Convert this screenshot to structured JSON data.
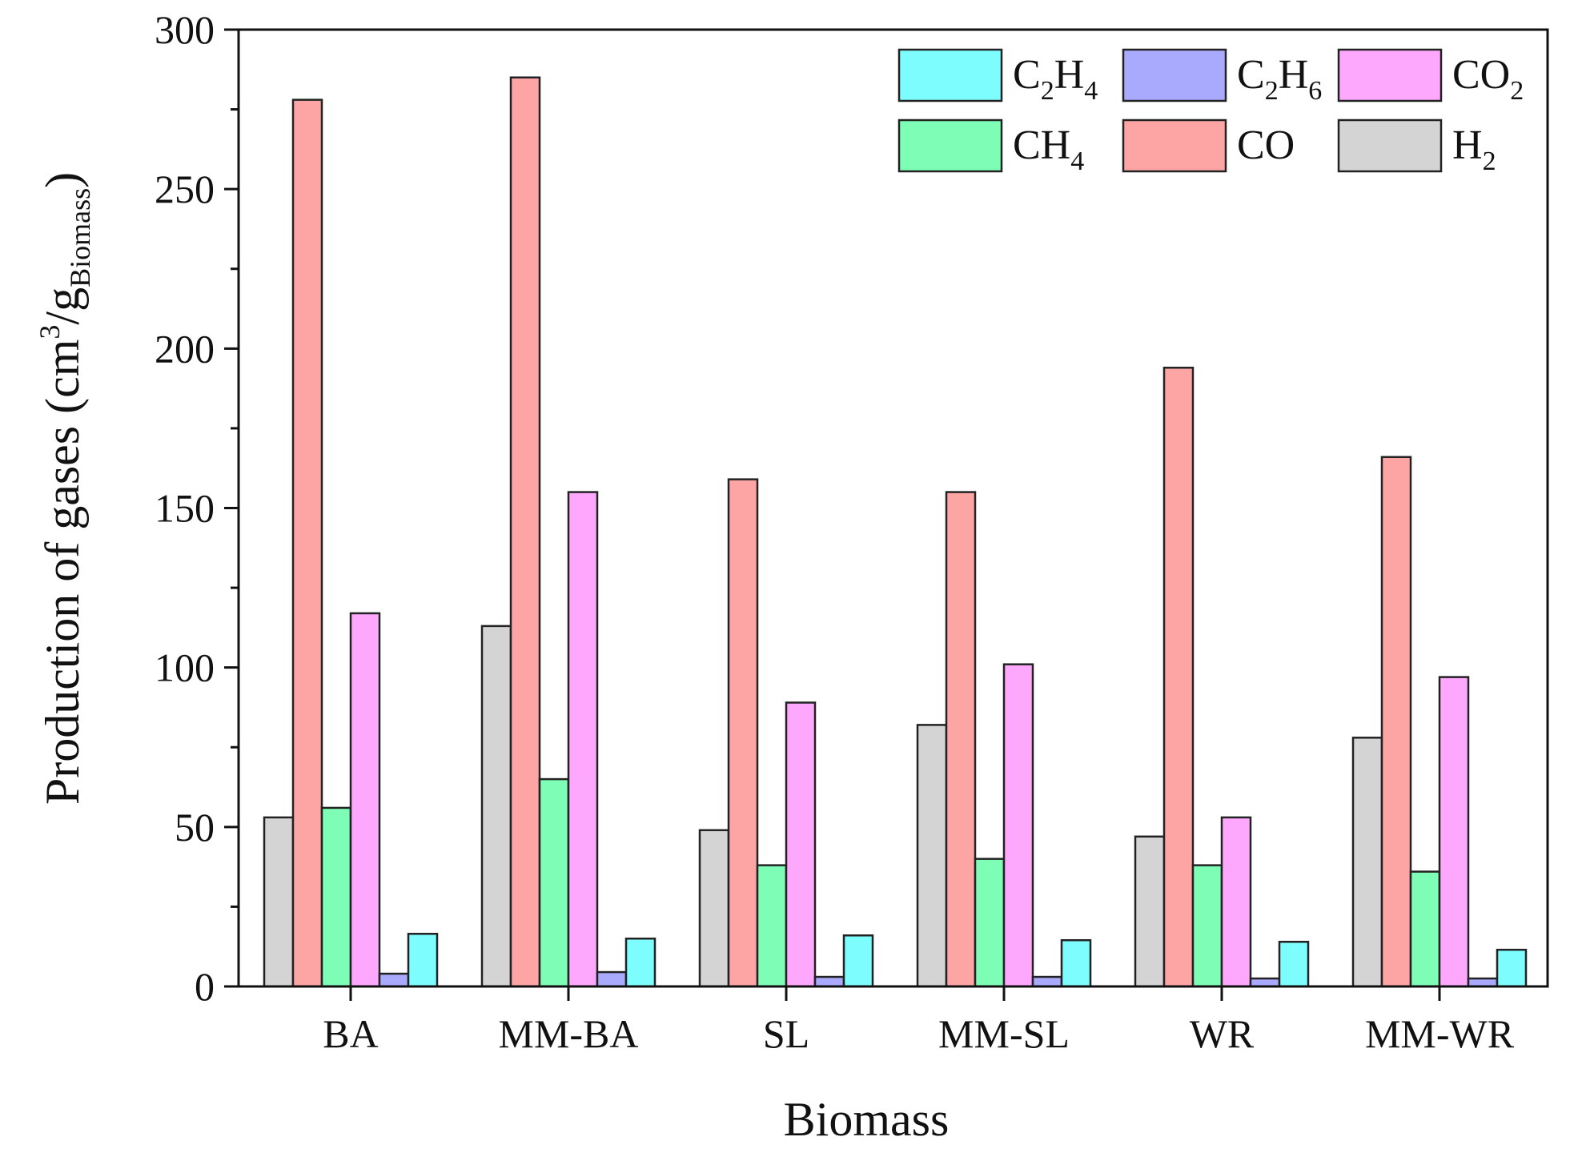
{
  "chart_data": {
    "type": "bar",
    "title": "",
    "xlabel": "Biomass",
    "ylabel": {
      "main": "Production of gases (cm",
      "sup": "3",
      "mid": "/g",
      "sub": "Biomass",
      "end": ")"
    },
    "ylim": [
      0,
      300
    ],
    "yticks": [
      "0",
      "50",
      "100",
      "150",
      "200",
      "250",
      "300"
    ],
    "categories": [
      "BA",
      "MM-BA",
      "SL",
      "MM-SL",
      "WR",
      "MM-WR"
    ],
    "series": [
      {
        "name": "H2",
        "label": {
          "base": "H",
          "sub": "2"
        },
        "color": "#d4d4d4",
        "values": [
          53,
          113,
          49,
          82,
          47,
          78
        ]
      },
      {
        "name": "CO",
        "label": {
          "base": "CO",
          "sub": ""
        },
        "color": "#fda4a4",
        "values": [
          278,
          285,
          159,
          155,
          194,
          166
        ]
      },
      {
        "name": "CH4",
        "label": {
          "base": "CH",
          "sub": "4"
        },
        "color": "#7dfdb5",
        "values": [
          56,
          65,
          38,
          40,
          38,
          36
        ]
      },
      {
        "name": "CO2",
        "label": {
          "base": "CO",
          "sub": "2"
        },
        "color": "#fda8fd",
        "values": [
          117,
          155,
          89,
          101,
          53,
          97
        ]
      },
      {
        "name": "C2H6",
        "label": {
          "base": "C",
          "sub": "2",
          "base2": "H",
          "sub2": "6"
        },
        "color": "#a9a9fd",
        "values": [
          4,
          4.5,
          3,
          3,
          2.5,
          2.5
        ]
      },
      {
        "name": "C2H4",
        "label": {
          "base": "C",
          "sub": "2",
          "base2": "H",
          "sub2": "4"
        },
        "color": "#7dfdfd",
        "values": [
          16.5,
          15,
          16,
          14.5,
          14,
          11.5
        ]
      }
    ],
    "legend_order": [
      "C2H4",
      "C2H6",
      "CO2",
      "CH4",
      "CO",
      "H2"
    ],
    "legend_position": "top-right",
    "grid": false
  }
}
